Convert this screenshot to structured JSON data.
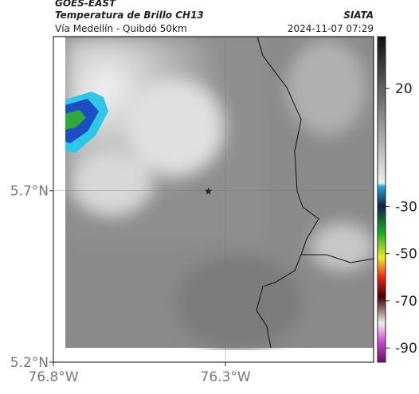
{
  "header": {
    "title": "GOES-EAST",
    "subtitle": "Temperatura de Brillo CH13",
    "source": "SIATA",
    "route": "Vía Medellín - Quibdó 50km",
    "datetime": "2024-11-07 07:29"
  },
  "map": {
    "latlim": [
      5.2,
      6.15
    ],
    "lonlim": [
      -76.8,
      -75.87
    ],
    "lat_ticks": [
      {
        "value": 5.7,
        "label": "5.7°N"
      },
      {
        "value": 5.2,
        "label": "5.2°N"
      }
    ],
    "lon_ticks": [
      {
        "value": -76.8,
        "label": "76.8°W"
      },
      {
        "value": -76.3,
        "label": "76.3°W"
      }
    ],
    "marker": {
      "lon": -76.35,
      "lat": 5.7
    }
  },
  "colorbar": {
    "lim": [
      42,
      -96
    ],
    "ticks": [
      20,
      -30,
      -50,
      -70,
      -90
    ]
  }
}
